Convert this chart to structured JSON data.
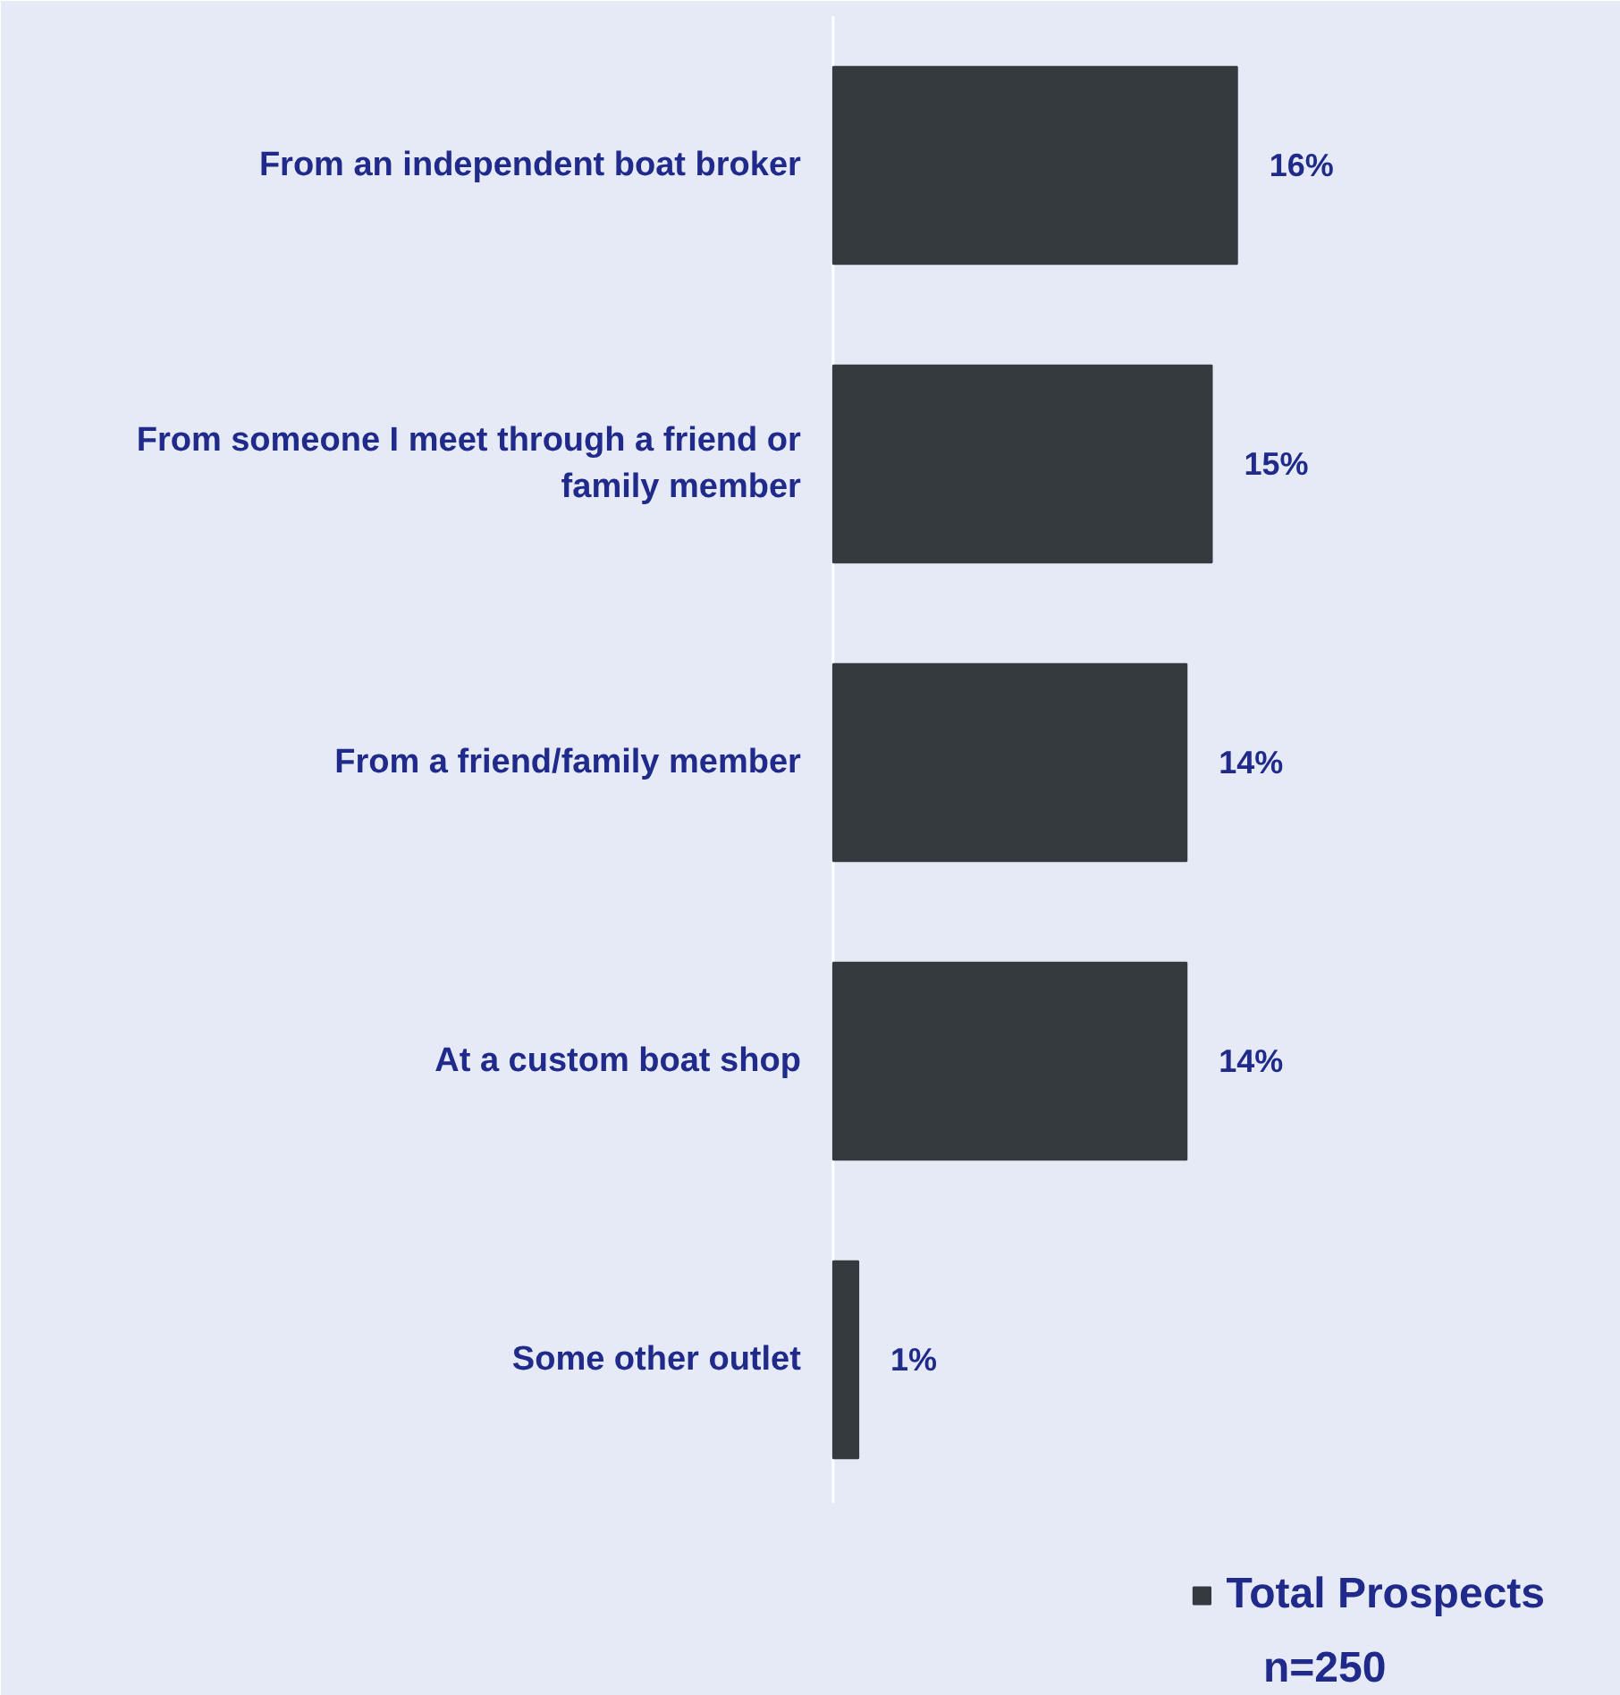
{
  "chart_data": {
    "type": "bar",
    "orientation": "horizontal",
    "categories": [
      "From an independent boat broker",
      "From someone I meet through a friend or family member",
      "From a friend/family member",
      "At a custom boat shop",
      "Some other outlet"
    ],
    "series": [
      {
        "name": "Total Prospects",
        "color": "#343a3e",
        "values": [
          16,
          15,
          14,
          14,
          1
        ],
        "value_labels": [
          "16%",
          "15%",
          "14%",
          "14%",
          "1%"
        ]
      }
    ],
    "legend": "bottom right",
    "grid": false,
    "annotations": [
      "n=250"
    ]
  }
}
